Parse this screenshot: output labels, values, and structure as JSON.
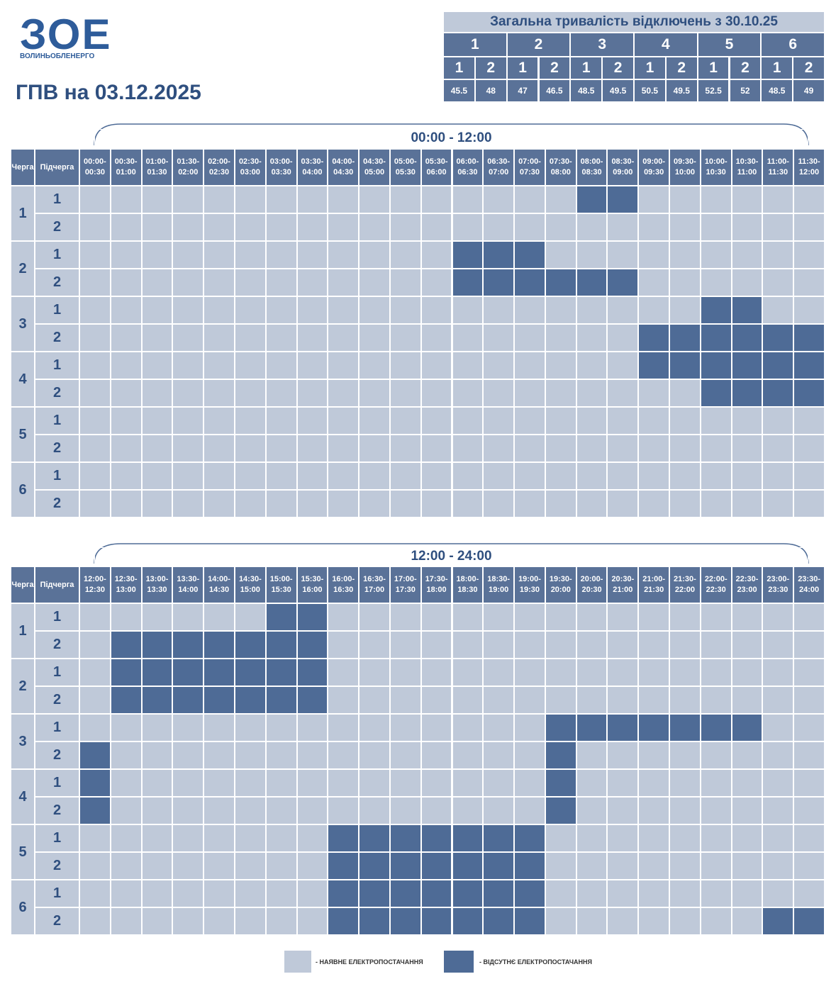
{
  "logo": {
    "mark": "ЗОЕ",
    "name": "ВОЛИНЬОБЛЕНЕРГО"
  },
  "title": "ГПВ на 03.12.2025",
  "summary": {
    "title": "Загальна тривалість відключень з 30.10.25",
    "groups": [
      {
        "label": "1",
        "subgroups": [
          {
            "label": "1",
            "value": 45.5
          },
          {
            "label": "2",
            "value": 48
          }
        ]
      },
      {
        "label": "2",
        "subgroups": [
          {
            "label": "1",
            "value": 47
          },
          {
            "label": "2",
            "value": 46.5
          }
        ]
      },
      {
        "label": "3",
        "subgroups": [
          {
            "label": "1",
            "value": 48.5
          },
          {
            "label": "2",
            "value": 49.5
          }
        ]
      },
      {
        "label": "4",
        "subgroups": [
          {
            "label": "1",
            "value": 50.5
          },
          {
            "label": "2",
            "value": 49.5
          }
        ]
      },
      {
        "label": "5",
        "subgroups": [
          {
            "label": "1",
            "value": 52.5
          },
          {
            "label": "2",
            "value": 52
          }
        ]
      },
      {
        "label": "6",
        "subgroups": [
          {
            "label": "1",
            "value": 48.5
          },
          {
            "label": "2",
            "value": 49
          }
        ]
      }
    ]
  },
  "headers": {
    "queue": "Черга",
    "subqueue": "Підчерга"
  },
  "schedules": [
    {
      "range": "00:00 - 12:00",
      "slots": [
        "00:00-00:30",
        "00:30-01:00",
        "01:00-01:30",
        "01:30-02:00",
        "02:00-02:30",
        "02:30-03:00",
        "03:00-03:30",
        "03:30-04:00",
        "04:00-04:30",
        "04:30-05:00",
        "05:00-05:30",
        "05:30-06:00",
        "06:00-06:30",
        "06:30-07:00",
        "07:00-07:30",
        "07:30-08:00",
        "08:00-08:30",
        "08:30-09:00",
        "09:00-09:30",
        "09:30-10:00",
        "10:00-10:30",
        "10:30-11:00",
        "11:00-11:30",
        "11:30-12:00"
      ],
      "queues": [
        {
          "label": "1",
          "subqueues": [
            {
              "label": "1",
              "off": [
                0,
                0,
                0,
                0,
                0,
                0,
                0,
                0,
                0,
                0,
                0,
                0,
                0,
                0,
                0,
                0,
                1,
                1,
                0,
                0,
                0,
                0,
                0,
                0
              ]
            },
            {
              "label": "2",
              "off": [
                0,
                0,
                0,
                0,
                0,
                0,
                0,
                0,
                0,
                0,
                0,
                0,
                0,
                0,
                0,
                0,
                0,
                0,
                0,
                0,
                0,
                0,
                0,
                0
              ]
            }
          ]
        },
        {
          "label": "2",
          "subqueues": [
            {
              "label": "1",
              "off": [
                0,
                0,
                0,
                0,
                0,
                0,
                0,
                0,
                0,
                0,
                0,
                0,
                1,
                1,
                1,
                0,
                0,
                0,
                0,
                0,
                0,
                0,
                0,
                0
              ]
            },
            {
              "label": "2",
              "off": [
                0,
                0,
                0,
                0,
                0,
                0,
                0,
                0,
                0,
                0,
                0,
                0,
                1,
                1,
                1,
                1,
                1,
                1,
                0,
                0,
                0,
                0,
                0,
                0
              ]
            }
          ]
        },
        {
          "label": "3",
          "subqueues": [
            {
              "label": "1",
              "off": [
                0,
                0,
                0,
                0,
                0,
                0,
                0,
                0,
                0,
                0,
                0,
                0,
                0,
                0,
                0,
                0,
                0,
                0,
                0,
                0,
                1,
                1,
                0,
                0
              ]
            },
            {
              "label": "2",
              "off": [
                0,
                0,
                0,
                0,
                0,
                0,
                0,
                0,
                0,
                0,
                0,
                0,
                0,
                0,
                0,
                0,
                0,
                0,
                1,
                1,
                1,
                1,
                1,
                1
              ]
            }
          ]
        },
        {
          "label": "4",
          "subqueues": [
            {
              "label": "1",
              "off": [
                0,
                0,
                0,
                0,
                0,
                0,
                0,
                0,
                0,
                0,
                0,
                0,
                0,
                0,
                0,
                0,
                0,
                0,
                1,
                1,
                1,
                1,
                1,
                1
              ]
            },
            {
              "label": "2",
              "off": [
                0,
                0,
                0,
                0,
                0,
                0,
                0,
                0,
                0,
                0,
                0,
                0,
                0,
                0,
                0,
                0,
                0,
                0,
                0,
                0,
                1,
                1,
                1,
                1
              ]
            }
          ]
        },
        {
          "label": "5",
          "subqueues": [
            {
              "label": "1",
              "off": [
                0,
                0,
                0,
                0,
                0,
                0,
                0,
                0,
                0,
                0,
                0,
                0,
                0,
                0,
                0,
                0,
                0,
                0,
                0,
                0,
                0,
                0,
                0,
                0
              ]
            },
            {
              "label": "2",
              "off": [
                0,
                0,
                0,
                0,
                0,
                0,
                0,
                0,
                0,
                0,
                0,
                0,
                0,
                0,
                0,
                0,
                0,
                0,
                0,
                0,
                0,
                0,
                0,
                0
              ]
            }
          ]
        },
        {
          "label": "6",
          "subqueues": [
            {
              "label": "1",
              "off": [
                0,
                0,
                0,
                0,
                0,
                0,
                0,
                0,
                0,
                0,
                0,
                0,
                0,
                0,
                0,
                0,
                0,
                0,
                0,
                0,
                0,
                0,
                0,
                0
              ]
            },
            {
              "label": "2",
              "off": [
                0,
                0,
                0,
                0,
                0,
                0,
                0,
                0,
                0,
                0,
                0,
                0,
                0,
                0,
                0,
                0,
                0,
                0,
                0,
                0,
                0,
                0,
                0,
                0
              ]
            }
          ]
        }
      ]
    },
    {
      "range": "12:00 - 24:00",
      "slots": [
        "12:00-12:30",
        "12:30-13:00",
        "13:00-13:30",
        "13:30-14:00",
        "14:00-14:30",
        "14:30-15:00",
        "15:00-15:30",
        "15:30-16:00",
        "16:00-16:30",
        "16:30-17:00",
        "17:00-17:30",
        "17:30-18:00",
        "18:00-18:30",
        "18:30-19:00",
        "19:00-19:30",
        "19:30-20:00",
        "20:00-20:30",
        "20:30-21:00",
        "21:00-21:30",
        "21:30-22:00",
        "22:00-22:30",
        "22:30-23:00",
        "23:00-23:30",
        "23:30-24:00"
      ],
      "queues": [
        {
          "label": "1",
          "subqueues": [
            {
              "label": "1",
              "off": [
                0,
                0,
                0,
                0,
                0,
                0,
                1,
                1,
                0,
                0,
                0,
                0,
                0,
                0,
                0,
                0,
                0,
                0,
                0,
                0,
                0,
                0,
                0,
                0
              ]
            },
            {
              "label": "2",
              "off": [
                0,
                1,
                1,
                1,
                1,
                1,
                1,
                1,
                0,
                0,
                0,
                0,
                0,
                0,
                0,
                0,
                0,
                0,
                0,
                0,
                0,
                0,
                0,
                0
              ]
            }
          ]
        },
        {
          "label": "2",
          "subqueues": [
            {
              "label": "1",
              "off": [
                0,
                1,
                1,
                1,
                1,
                1,
                1,
                1,
                0,
                0,
                0,
                0,
                0,
                0,
                0,
                0,
                0,
                0,
                0,
                0,
                0,
                0,
                0,
                0
              ]
            },
            {
              "label": "2",
              "off": [
                0,
                1,
                1,
                1,
                1,
                1,
                1,
                1,
                0,
                0,
                0,
                0,
                0,
                0,
                0,
                0,
                0,
                0,
                0,
                0,
                0,
                0,
                0,
                0
              ]
            }
          ]
        },
        {
          "label": "3",
          "subqueues": [
            {
              "label": "1",
              "off": [
                0,
                0,
                0,
                0,
                0,
                0,
                0,
                0,
                0,
                0,
                0,
                0,
                0,
                0,
                0,
                1,
                1,
                1,
                1,
                1,
                1,
                1,
                0,
                0
              ]
            },
            {
              "label": "2",
              "off": [
                1,
                0,
                0,
                0,
                0,
                0,
                0,
                0,
                0,
                0,
                0,
                0,
                0,
                0,
                0,
                1,
                0,
                0,
                0,
                0,
                0,
                0,
                0,
                0
              ]
            }
          ]
        },
        {
          "label": "4",
          "subqueues": [
            {
              "label": "1",
              "off": [
                1,
                0,
                0,
                0,
                0,
                0,
                0,
                0,
                0,
                0,
                0,
                0,
                0,
                0,
                0,
                1,
                0,
                0,
                0,
                0,
                0,
                0,
                0,
                0
              ]
            },
            {
              "label": "2",
              "off": [
                1,
                0,
                0,
                0,
                0,
                0,
                0,
                0,
                0,
                0,
                0,
                0,
                0,
                0,
                0,
                1,
                0,
                0,
                0,
                0,
                0,
                0,
                0,
                0
              ]
            }
          ]
        },
        {
          "label": "5",
          "subqueues": [
            {
              "label": "1",
              "off": [
                0,
                0,
                0,
                0,
                0,
                0,
                0,
                0,
                1,
                1,
                1,
                1,
                1,
                1,
                1,
                0,
                0,
                0,
                0,
                0,
                0,
                0,
                0,
                0
              ]
            },
            {
              "label": "2",
              "off": [
                0,
                0,
                0,
                0,
                0,
                0,
                0,
                0,
                1,
                1,
                1,
                1,
                1,
                1,
                1,
                0,
                0,
                0,
                0,
                0,
                0,
                0,
                0,
                0
              ]
            }
          ]
        },
        {
          "label": "6",
          "subqueues": [
            {
              "label": "1",
              "off": [
                0,
                0,
                0,
                0,
                0,
                0,
                0,
                0,
                1,
                1,
                1,
                1,
                1,
                1,
                1,
                0,
                0,
                0,
                0,
                0,
                0,
                0,
                0,
                0
              ]
            },
            {
              "label": "2",
              "off": [
                0,
                0,
                0,
                0,
                0,
                0,
                0,
                0,
                1,
                1,
                1,
                1,
                1,
                1,
                1,
                0,
                0,
                0,
                0,
                0,
                0,
                0,
                1,
                1
              ]
            }
          ]
        }
      ]
    }
  ],
  "legend": [
    {
      "label": "- НАЯВНЕ ЕЛЕКТРОПОСТАЧАННЯ"
    },
    {
      "label": "- ВІДСУТНЄ ЕЛЕКТРОПОСТАЧАННЯ"
    }
  ]
}
